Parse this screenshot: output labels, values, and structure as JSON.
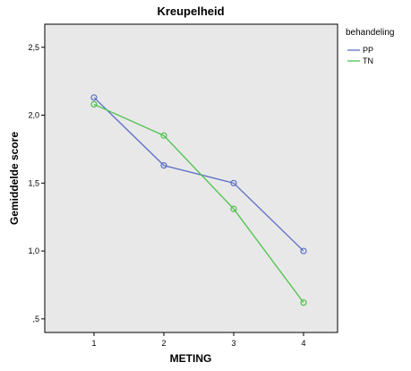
{
  "chart_data": {
    "type": "line",
    "title": "Kreupelheid",
    "xlabel": "METING",
    "ylabel": "Gemiddelde score",
    "categories": [
      "1",
      "2",
      "3",
      "4"
    ],
    "y_ticks": [
      ",5",
      "1,0",
      "1,5",
      "2,0",
      "2,5"
    ],
    "y_tick_values": [
      0.5,
      1.0,
      1.5,
      2.0,
      2.5
    ],
    "ylim": [
      0.4,
      2.67
    ],
    "grid": false,
    "legend_title": "behandeling",
    "legend_position": "right",
    "plot_background": "#e8e8e8",
    "series": [
      {
        "name": "PP",
        "color": "#5a6fc7",
        "values": [
          2.13,
          1.63,
          1.5,
          1.0
        ]
      },
      {
        "name": "TN",
        "color": "#4cc24c",
        "values": [
          2.08,
          1.85,
          1.31,
          0.62
        ]
      }
    ]
  }
}
